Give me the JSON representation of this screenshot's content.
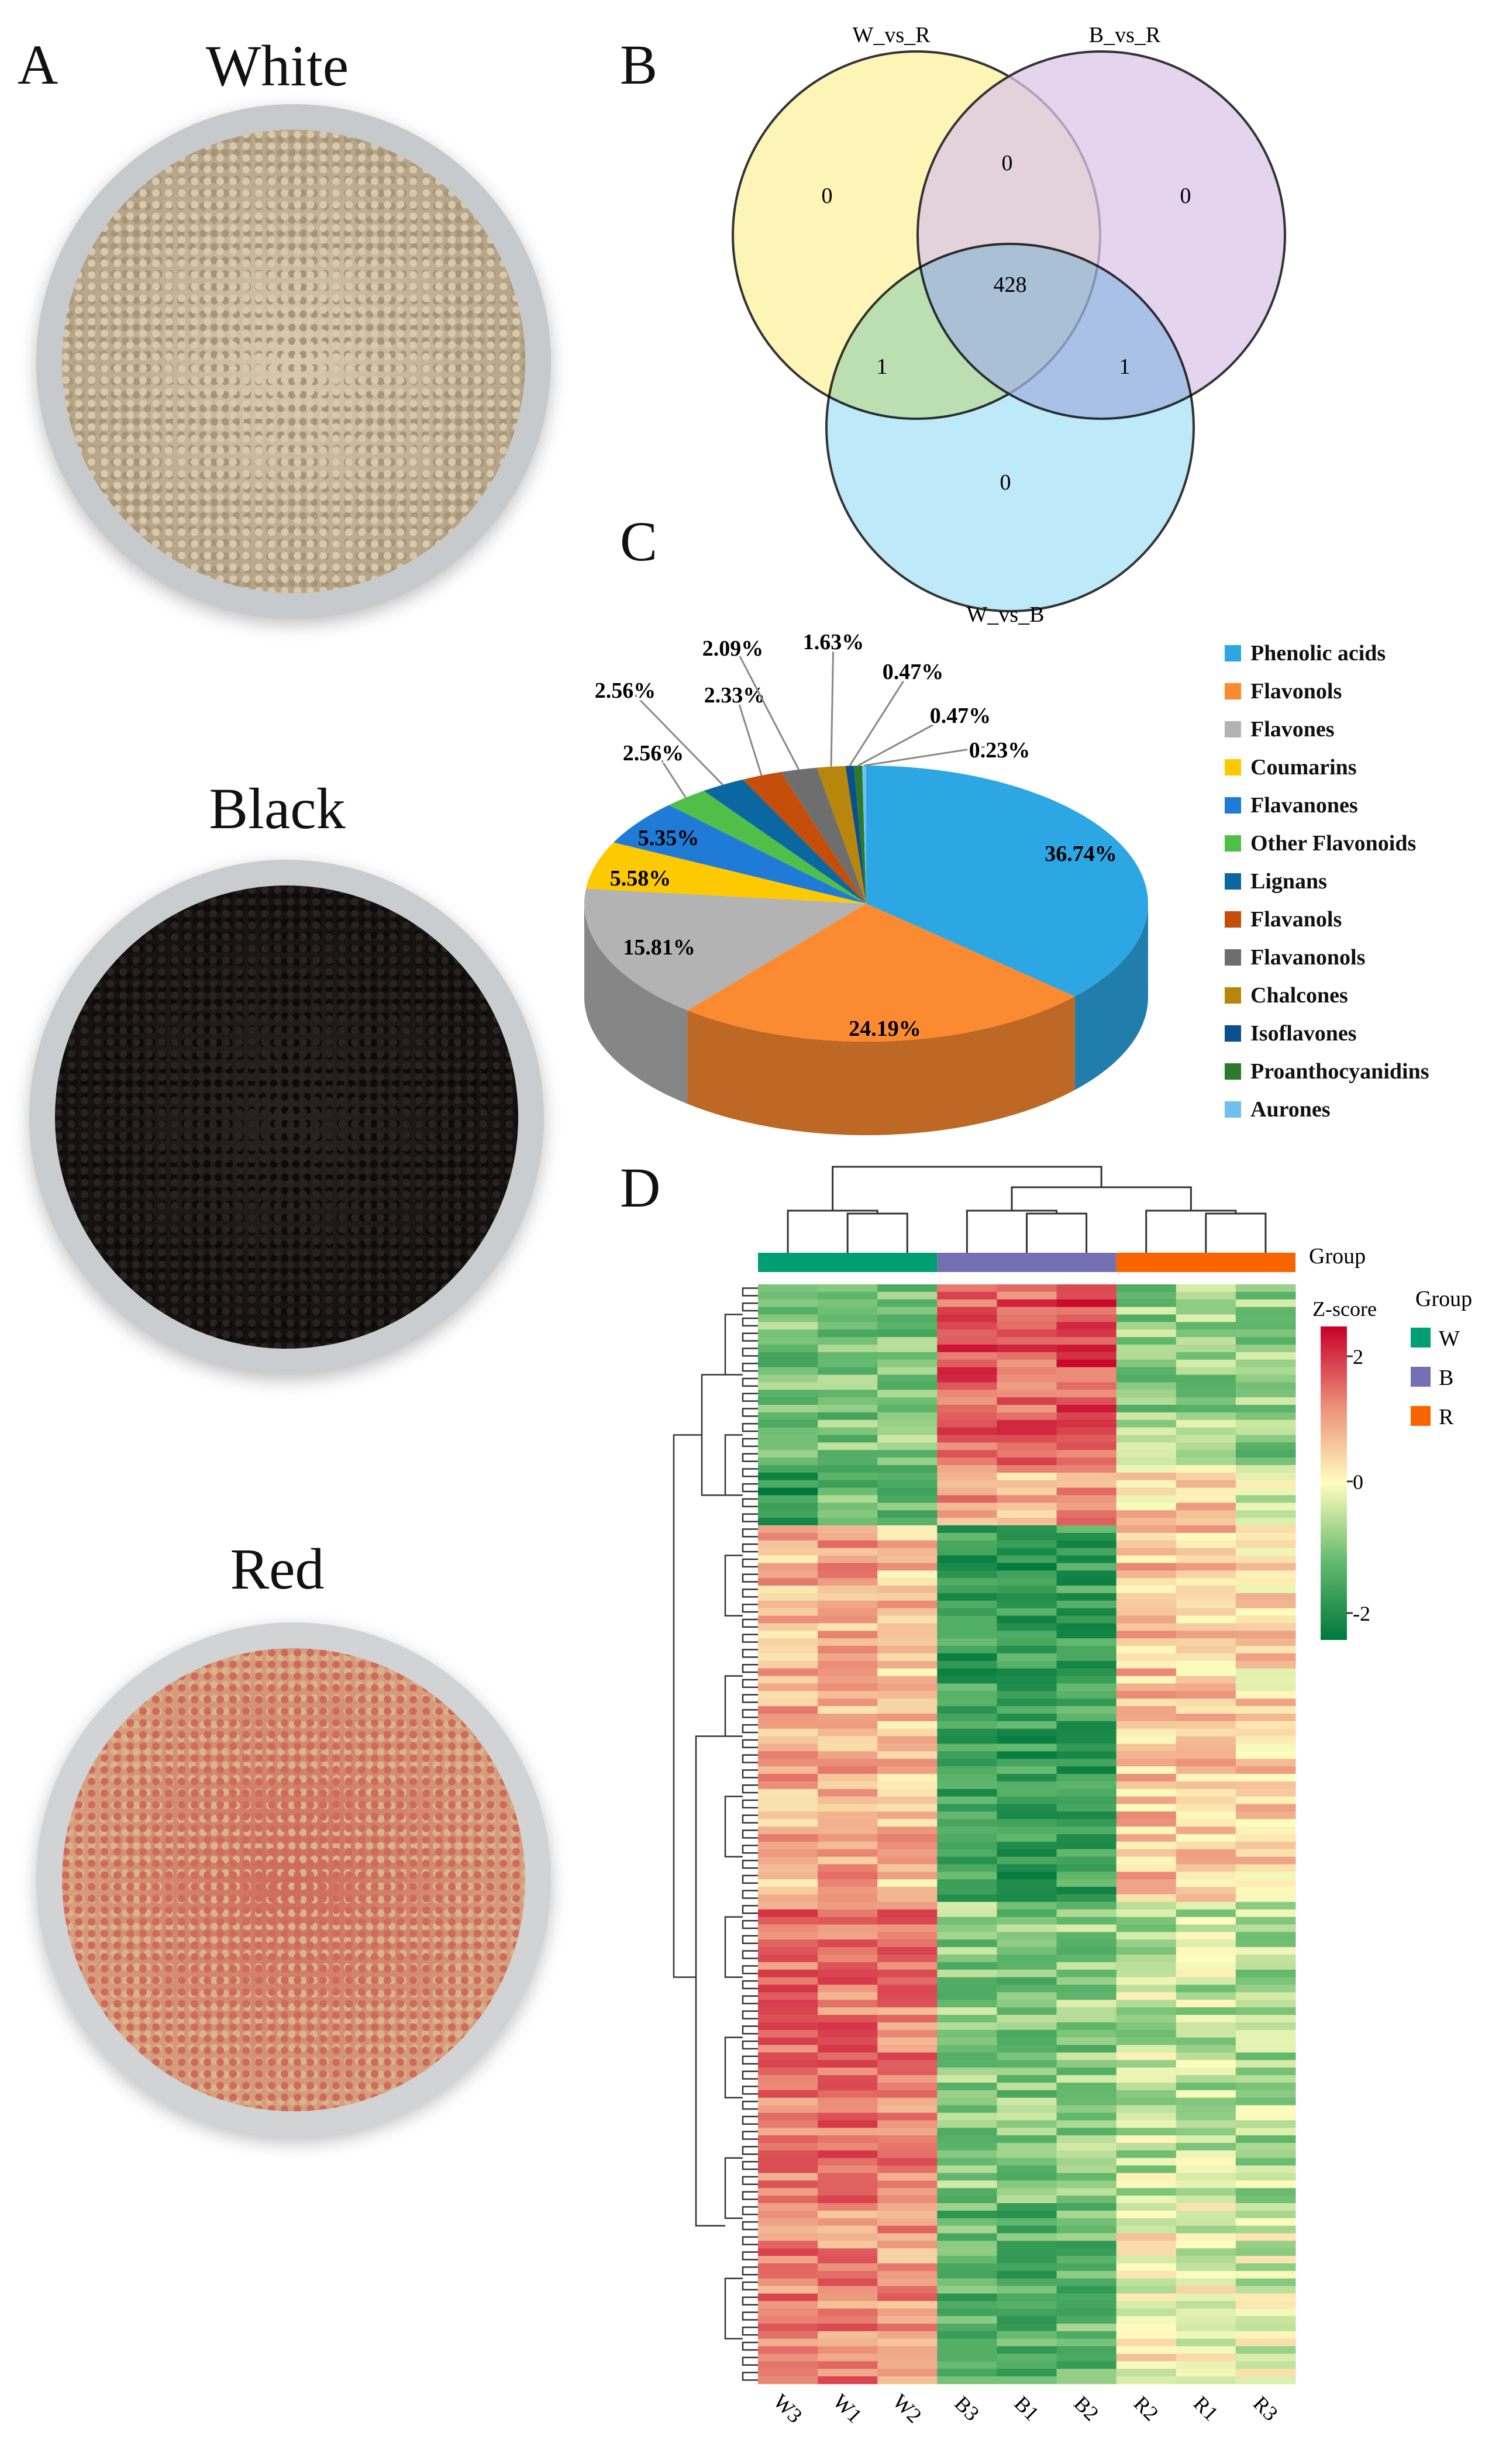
{
  "panel_labels": {
    "a": "A",
    "b": "B",
    "c": "C",
    "d": "D"
  },
  "photos": [
    {
      "title": "White",
      "seed": "#d8c9ad",
      "seed_dark": "#a89578"
    },
    {
      "title": "Black",
      "seed": "#2a2222",
      "seed_dark": "#0d0a0a"
    },
    {
      "title": "Red",
      "seed": "#cf6a5c",
      "seed_dark": "#d9b48a"
    }
  ],
  "venn": {
    "sets": [
      {
        "name": "W_vs_R",
        "color": "#fbf29c"
      },
      {
        "name": "B_vs_R",
        "color": "#dcc6e8"
      },
      {
        "name": "W_vs_B",
        "color": "#a7e2f5"
      }
    ],
    "regions": {
      "only_W_vs_R": "0",
      "only_B_vs_R": "0",
      "only_W_vs_B": "0",
      "W_vs_R_and_B_vs_R": "0",
      "W_vs_R_and_W_vs_B": "1",
      "B_vs_R_and_W_vs_B": "1",
      "all": "428"
    }
  },
  "chart_data": {
    "type": "pie",
    "title": "",
    "categories": [
      "Phenolic acids",
      "Flavonols",
      "Flavones",
      "Coumarins",
      "Flavanones",
      "Other Flavonoids",
      "Lignans",
      "Flavanols",
      "Flavanonols",
      "Chalcones",
      "Isoflavones",
      "Proanthocyanidins",
      "Aurones"
    ],
    "values": [
      36.74,
      24.19,
      15.81,
      5.58,
      5.35,
      2.56,
      2.56,
      2.33,
      2.09,
      1.63,
      0.47,
      0.47,
      0.23
    ],
    "labels": [
      "36.74%",
      "24.19%",
      "15.81%",
      "5.58%",
      "5.35%",
      "2.56%",
      "2.56%",
      "2.33%",
      "2.09%",
      "1.63%",
      "0.47%",
      "0.47%",
      "0.23%"
    ],
    "colors": [
      "#2ca7e4",
      "#fc8a30",
      "#b3b3b3",
      "#fdc900",
      "#1f7bd6",
      "#4fbf4a",
      "#0a67a0",
      "#c54f0a",
      "#6e6e6e",
      "#b8860b",
      "#0c4f8e",
      "#2a7a2a",
      "#6fc0ee"
    ],
    "legend_position": "right"
  },
  "heatmap": {
    "group_label": "Group",
    "zscore_label": "Z-score",
    "ticks": [
      "2",
      "0",
      "-2"
    ],
    "legend_title": "Group",
    "groups": [
      {
        "name": "W",
        "color": "#009e73"
      },
      {
        "name": "B",
        "color": "#7570b3"
      },
      {
        "name": "R",
        "color": "#f96400"
      }
    ],
    "columns": [
      "W3",
      "W1",
      "W2",
      "B3",
      "B1",
      "B2",
      "R2",
      "R1",
      "R3"
    ],
    "row_blocks": [
      {
        "rows": 24,
        "means": [
          -1,
          -1,
          -1,
          1.7,
          1.6,
          1.8,
          -0.9,
          -0.8,
          -0.9
        ]
      },
      {
        "rows": 8,
        "means": [
          -2,
          -1.2,
          -1.4,
          1,
          0.8,
          1.2,
          0.4,
          0.5,
          -0.3
        ]
      },
      {
        "rows": 50,
        "means": [
          0.8,
          0.9,
          0.7,
          -1.7,
          -1.8,
          -1.7,
          0.6,
          0.6,
          0.4
        ]
      },
      {
        "rows": 40,
        "means": [
          1.4,
          1.4,
          1.3,
          -0.9,
          -1,
          -0.9,
          -0.5,
          -0.5,
          -0.6
        ]
      },
      {
        "rows": 24,
        "means": [
          1.3,
          1.2,
          1.1,
          -1.3,
          -1.4,
          -1.3,
          0,
          -0.2,
          -0.3
        ]
      }
    ]
  }
}
